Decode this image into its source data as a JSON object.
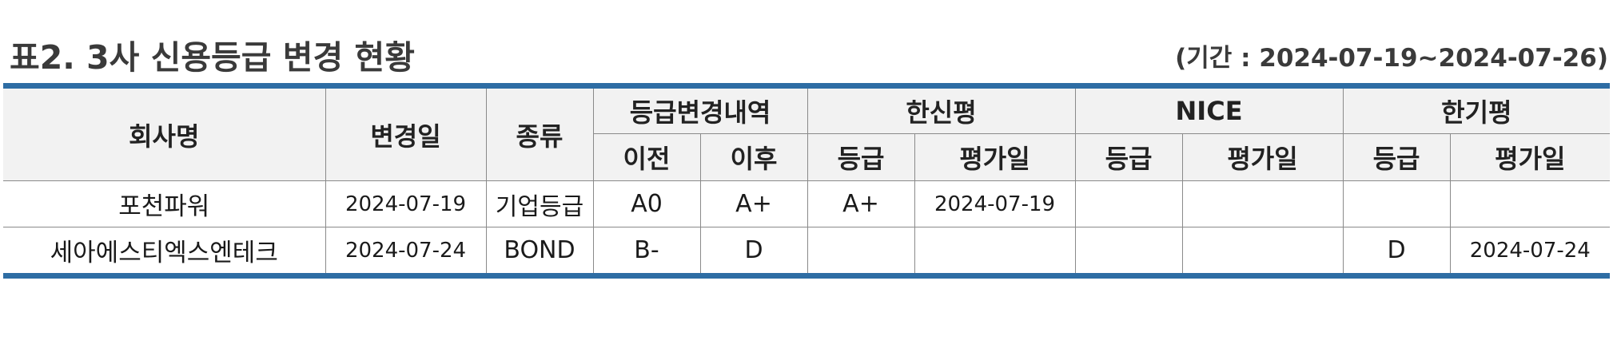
{
  "title": "표2. 3사 신용등급 변경 현황",
  "period": "(기간 : 2024-07-19~2024-07-26)",
  "accent_color": "#2e6da4",
  "header": {
    "company": "회사명",
    "change_date": "변경일",
    "type": "종류",
    "change_detail": "등급변경내역",
    "before": "이전",
    "after": "이후",
    "agency1": "한신평",
    "agency2": "NICE",
    "agency3": "한기평",
    "grade": "등급",
    "eval_date": "평가일"
  },
  "rows": [
    {
      "company": "포천파워",
      "change_date": "2024-07-19",
      "type": "기업등급",
      "before": "A0",
      "after": "A+",
      "a1_grade": "A+",
      "a1_date": "2024-07-19",
      "a2_grade": "",
      "a2_date": "",
      "a3_grade": "",
      "a3_date": ""
    },
    {
      "company": "세아에스티엑스엔테크",
      "change_date": "2024-07-24",
      "type": "BOND",
      "before": "B-",
      "after": "D",
      "a1_grade": "",
      "a1_date": "",
      "a2_grade": "",
      "a2_date": "",
      "a3_grade": "D",
      "a3_date": "2024-07-24"
    }
  ]
}
